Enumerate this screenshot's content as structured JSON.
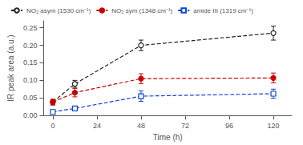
{
  "chart_data": {
    "type": "line",
    "x": [
      0,
      12,
      48,
      120
    ],
    "series": [
      {
        "name": "NO₂ asym (1530 cm⁻¹)",
        "color": "#222222",
        "marker": "open circle",
        "line_style": "dashed",
        "values": [
          0.038,
          0.09,
          0.2,
          0.235
        ],
        "yerr": [
          0.008,
          0.01,
          0.015,
          0.02
        ]
      },
      {
        "name": "NO₂ sym (1348 cm⁻¹)",
        "color": "#cc0000",
        "marker": "filled circle",
        "line_style": "dashed",
        "values": [
          0.038,
          0.065,
          0.105,
          0.107
        ],
        "yerr": [
          0.008,
          0.012,
          0.014,
          0.014
        ]
      },
      {
        "name": "amide III (1319 cm⁻¹)",
        "color": "#1144cc",
        "marker": "open square",
        "line_style": "dashed",
        "values": [
          0.01,
          0.02,
          0.055,
          0.062
        ],
        "yerr": [
          0.006,
          0.006,
          0.015,
          0.013
        ]
      }
    ],
    "xlabel": "Time (h)",
    "ylabel": "IR peak area (a.u.)",
    "xlim": [
      -5,
      130
    ],
    "xticks": [
      0,
      24,
      48,
      72,
      96,
      120
    ],
    "ylim": [
      0,
      0.27
    ],
    "yticks": [
      {
        "value": 0.0,
        "label": "0.00"
      },
      {
        "value": 0.05,
        "label": "0.05"
      },
      {
        "value": 0.1,
        "label": "0.10"
      },
      {
        "value": 0.15,
        "label": "0.15"
      },
      {
        "value": 0.2,
        "label": "0.20"
      },
      {
        "value": 0.25,
        "label": "0.25"
      }
    ],
    "grid": false,
    "legend": "upper left"
  }
}
